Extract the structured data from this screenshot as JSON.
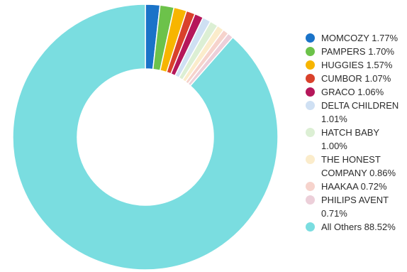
{
  "chart_data": {
    "type": "pie",
    "donut": true,
    "title": "",
    "legend_position": "right",
    "slices": [
      {
        "label": "MOMCOZY 1.77%",
        "name": "MOMCOZY",
        "value": 1.77,
        "color": "#1a73c8"
      },
      {
        "label": "PAMPERS 1.70%",
        "name": "PAMPERS",
        "value": 1.7,
        "color": "#6cc24a"
      },
      {
        "label": "HUGGIES 1.57%",
        "name": "HUGGIES",
        "value": 1.57,
        "color": "#f7b500"
      },
      {
        "label": "CUMBOR 1.07%",
        "name": "CUMBOR",
        "value": 1.07,
        "color": "#d9412b"
      },
      {
        "label": "GRACO 1.06%",
        "name": "GRACO",
        "value": 1.06,
        "color": "#b5175a"
      },
      {
        "label": "DELTA CHILDREN 1.01%",
        "name": "DELTA CHILDREN",
        "value": 1.01,
        "color": "#cfe0f3"
      },
      {
        "label": "HATCH BABY 1.00%",
        "name": "HATCH BABY",
        "value": 1.0,
        "color": "#dcefd4"
      },
      {
        "label": "THE HONEST COMPANY 0.86%",
        "name": "THE HONEST COMPANY",
        "value": 0.86,
        "color": "#fbeccb"
      },
      {
        "label": "HAAKAA 0.72%",
        "name": "HAAKAA",
        "value": 0.72,
        "color": "#f6d3cc"
      },
      {
        "label": "PHILIPS AVENT 0.71%",
        "name": "PHILIPS AVENT",
        "value": 0.71,
        "color": "#eccfd9"
      },
      {
        "label": "All Others 88.52%",
        "name": "All Others",
        "value": 88.52,
        "color": "#7adde0"
      }
    ]
  }
}
